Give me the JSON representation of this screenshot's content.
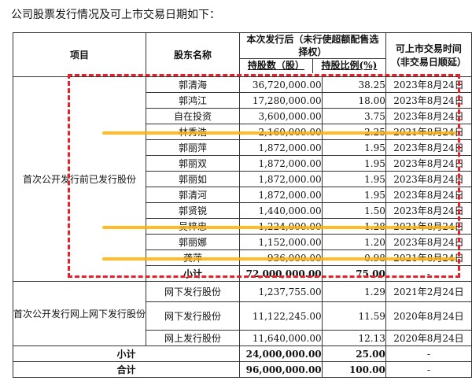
{
  "intro": "公司股票发行情况及可上市交易日期如下：",
  "headers": {
    "item": "项目",
    "holder": "股东名称",
    "after_issue": "本次发行后（未行使超额配售选择权）",
    "after_issue_l1": "本次发行后（未行使超额配售选",
    "after_issue_l2": "择权）",
    "shares": "持股数（股）",
    "ratio": "持股比例(%)",
    "listing": "可上市交易时间（非交易日顺延）",
    "listing_l1": "可上市交易时间",
    "listing_l2": "（非交易日顺延）"
  },
  "group1_label": "首次公开发行前已发行股份",
  "group1_rows": [
    {
      "name": "郭清海",
      "shares": "36,720,000.00",
      "ratio": "38.25",
      "date": "2023年8月24日"
    },
    {
      "name": "郭鸿江",
      "shares": "17,280,000.00",
      "ratio": "18.00",
      "date": "2023年8月24日"
    },
    {
      "name": "自在投资",
      "shares": "3,600,000.00",
      "ratio": "3.75",
      "date": "2023年8月24日"
    },
    {
      "name": "林秀浩",
      "shares": "2,160,000.00",
      "ratio": "2.25",
      "date": "2021年8月24日"
    },
    {
      "name": "郭丽萍",
      "shares": "1,872,000.00",
      "ratio": "1.95",
      "date": "2023年8月24日"
    },
    {
      "name": "郭丽双",
      "shares": "1,872,000.00",
      "ratio": "1.95",
      "date": "2023年8月24日"
    },
    {
      "name": "郭丽如",
      "shares": "1,872,000.00",
      "ratio": "1.95",
      "date": "2023年8月24日"
    },
    {
      "name": "郭清河",
      "shares": "1,872,000.00",
      "ratio": "1.95",
      "date": "2023年8月24日"
    },
    {
      "name": "郭贤锐",
      "shares": "1,440,000.00",
      "ratio": "1.50",
      "date": "2023年8月24日"
    },
    {
      "name": "吴梓忠",
      "shares": "1,224,000.00",
      "ratio": "1.28",
      "date": "2021年8月24日"
    },
    {
      "name": "郭丽娜",
      "shares": "1,152,000.00",
      "ratio": "1.20",
      "date": "2023年8月24日"
    },
    {
      "name": "龚萍",
      "shares": "936,000.00",
      "ratio": "0.98",
      "date": "2021年8月24日"
    }
  ],
  "group1_subtotal": {
    "label": "小计",
    "shares": "72,000,000.00",
    "ratio": "75.00",
    "date": "-"
  },
  "group2_label": "首次公开发行网上网下发行股份",
  "group2_rows": [
    {
      "name": "网下发行股份",
      "shares": "1,237,755.00",
      "ratio": "1.29",
      "date": "2021年2月24日"
    },
    {
      "name": "网下发行股份",
      "shares": "11,122,245.00",
      "ratio": "11.59",
      "date": "2020年8月24日"
    },
    {
      "name": "网上发行股份",
      "shares": "11,640,000.00",
      "ratio": "12.13",
      "date": "2020年8月24日"
    }
  ],
  "group2_subtotal": {
    "label": "小计",
    "shares": "24,000,000.00",
    "ratio": "25.00",
    "date": "-"
  },
  "total": {
    "label": "合计",
    "shares": "96,000,000.00",
    "ratio": "100.00",
    "date": "-"
  },
  "colors": {
    "dashed_box": "#e8212b",
    "strike": "#ffb000"
  }
}
